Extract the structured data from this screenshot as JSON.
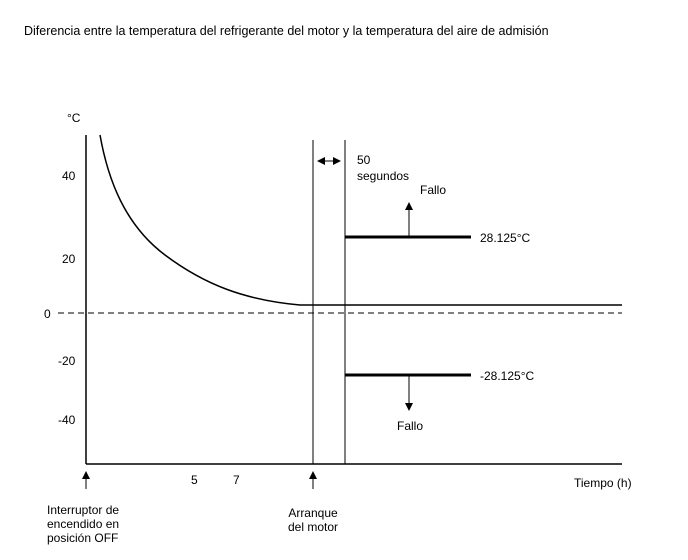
{
  "title": "Diferencia entre la temperatura del refrigerante del motor y la temperatura del aire de admisión",
  "y_unit": "°C",
  "y_ticks": [
    "40",
    "20",
    "0",
    "-20",
    "-40"
  ],
  "x_ticks": [
    "5",
    "7"
  ],
  "x_axis_label": "Tiempo (h)",
  "interval_label": [
    "50",
    "segundos"
  ],
  "upper_threshold": "28.125°C",
  "lower_threshold": "-28.125°C",
  "fail_label": "Fallo",
  "event_ignition_off": [
    "Interruptor de",
    "encendido en",
    "posición OFF"
  ],
  "event_engine_start": [
    "Arranque",
    "del motor"
  ]
}
